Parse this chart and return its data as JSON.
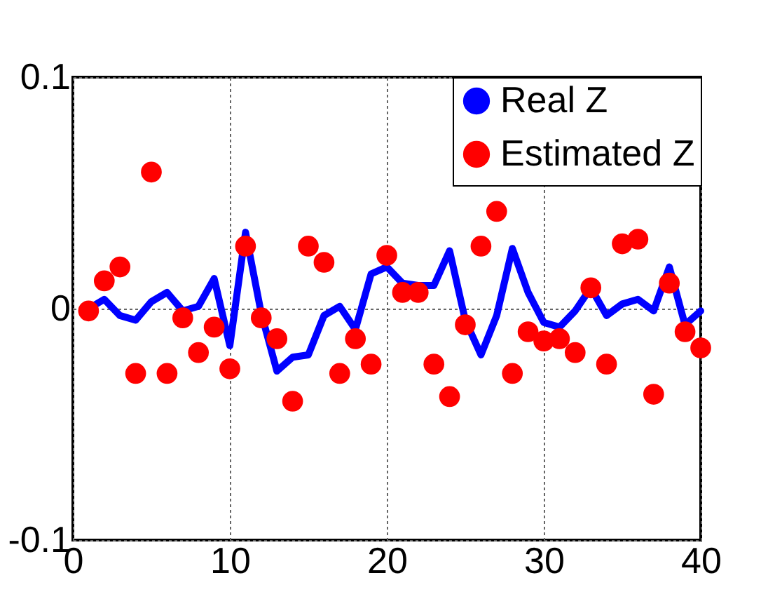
{
  "chart_data": {
    "type": "line",
    "x": [
      1,
      2,
      3,
      4,
      5,
      6,
      7,
      8,
      9,
      10,
      11,
      12,
      13,
      14,
      15,
      16,
      17,
      18,
      19,
      20,
      21,
      22,
      23,
      24,
      25,
      26,
      27,
      28,
      29,
      30,
      31,
      32,
      33,
      34,
      35,
      36,
      37,
      38,
      39,
      40
    ],
    "series": [
      {
        "name": "Real Z",
        "color": "#0000ff",
        "marker": "none",
        "line_style": "solid",
        "values": [
          0,
          0.004,
          -0.003,
          -0.005,
          0.003,
          0.007,
          -0.001,
          0.001,
          0.013,
          -0.016,
          0.033,
          -0.002,
          -0.027,
          -0.021,
          -0.02,
          -0.003,
          0.001,
          -0.009,
          0.015,
          0.018,
          0.011,
          0.01,
          0.01,
          0.025,
          -0.005,
          -0.02,
          -0.003,
          0.026,
          0.007,
          -0.006,
          -0.008,
          -0.001,
          0.009,
          -0.003,
          0.002,
          0.004,
          -0.001,
          0.018,
          -0.007,
          -0.001
        ]
      },
      {
        "name": "Estimated Z",
        "type": "scatter",
        "color": "#ff0000",
        "marker": "circle",
        "values": [
          -0.001,
          0.012,
          0.018,
          -0.028,
          0.059,
          -0.028,
          -0.004,
          -0.019,
          -0.008,
          -0.026,
          0.027,
          -0.004,
          -0.013,
          -0.04,
          0.027,
          0.02,
          -0.028,
          -0.013,
          -0.024,
          0.023,
          0.007,
          0.007,
          -0.024,
          -0.038,
          -0.007,
          0.027,
          0.042,
          -0.028,
          -0.01,
          -0.014,
          -0.013,
          -0.019,
          0.009,
          -0.024,
          0.028,
          0.03,
          -0.037,
          0.011,
          -0.01,
          -0.017
        ]
      }
    ],
    "xlim": [
      0,
      40
    ],
    "xticks": [
      0,
      10,
      20,
      30,
      40
    ],
    "ylim": [
      -0.1,
      0.1
    ],
    "yticks": [
      -0.1,
      0,
      0.1
    ],
    "grid": true,
    "legend": "top right"
  }
}
